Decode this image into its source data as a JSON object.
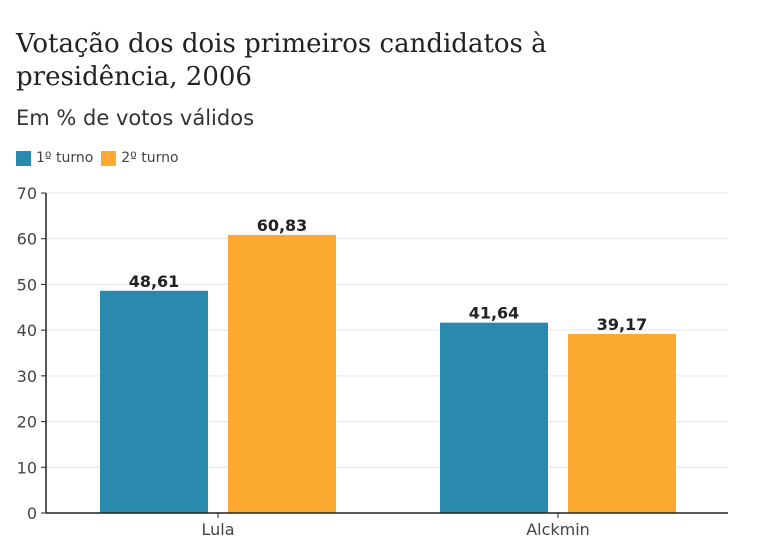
{
  "chart_data": {
    "type": "bar",
    "title": "Votação dos dois primeiros candidatos à presidência, 2006",
    "subtitle": "Em % de votos válidos",
    "categories": [
      "Lula",
      "Alckmin"
    ],
    "series": [
      {
        "name": "1º turno",
        "values": [
          48.61,
          41.64
        ],
        "labels": [
          "48,61",
          "41,64"
        ],
        "color": "#2a8aad"
      },
      {
        "name": "2º turno",
        "values": [
          60.83,
          39.17
        ],
        "labels": [
          "60,83",
          "39,17"
        ],
        "color": "#fdaa33"
      }
    ],
    "ylim": [
      0,
      70
    ],
    "yticks": [
      0,
      10,
      20,
      30,
      40,
      50,
      60,
      70
    ],
    "grid": true,
    "legend": "top-left"
  }
}
